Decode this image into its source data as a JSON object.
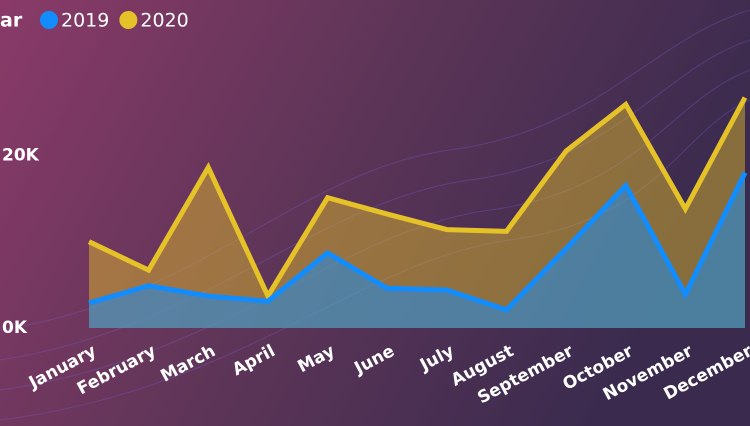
{
  "chart_data": {
    "type": "area",
    "legend_title": "ar",
    "categories": [
      "January",
      "February",
      "March",
      "April",
      "May",
      "June",
      "July",
      "August",
      "September",
      "October",
      "November",
      "December"
    ],
    "series": [
      {
        "name": "2019",
        "color": "#118dff",
        "values": [
          2900,
          4900,
          3700,
          3100,
          8700,
          4600,
          4400,
          2100,
          9200,
          16500,
          3900,
          18000
        ]
      },
      {
        "name": "2020",
        "color": "#e6c229",
        "values": [
          10000,
          6700,
          18600,
          3700,
          15100,
          13200,
          11400,
          11200,
          20500,
          25900,
          13800,
          26700
        ]
      }
    ],
    "ylim": [
      0,
      38000
    ],
    "yticks": [
      {
        "value": 0,
        "label": "0K"
      },
      {
        "value": 20000,
        "label": "20K"
      }
    ],
    "legend_position": "top-left"
  }
}
